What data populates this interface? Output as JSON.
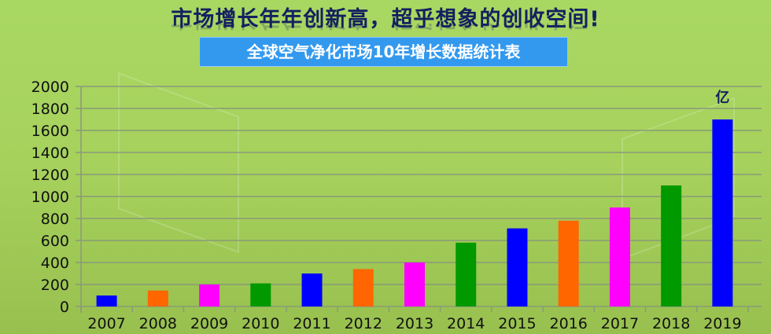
{
  "headline": "市场增长年年创新高，超乎想象的创收空间!",
  "chart_data": {
    "type": "bar",
    "title": "全球空气净化市场10年增长数据统计表",
    "unit_label": "亿",
    "categories": [
      "2007",
      "2008",
      "2009",
      "2010",
      "2011",
      "2012",
      "2013",
      "2014",
      "2015",
      "2016",
      "2017",
      "2018",
      "2019"
    ],
    "values": [
      100,
      145,
      200,
      210,
      300,
      340,
      400,
      580,
      710,
      780,
      900,
      1100,
      1700
    ],
    "colors": [
      "#0000ff",
      "#ff6600",
      "#ff00ff",
      "#009900",
      "#0000ff",
      "#ff6600",
      "#ff00ff",
      "#009900",
      "#0000ff",
      "#ff6600",
      "#ff00ff",
      "#009900",
      "#0000ff"
    ],
    "ylim": [
      0,
      2000
    ],
    "yticks": [
      0,
      200,
      400,
      600,
      800,
      1000,
      1200,
      1400,
      1600,
      1800,
      2000
    ],
    "grid": true,
    "legend": "none"
  }
}
